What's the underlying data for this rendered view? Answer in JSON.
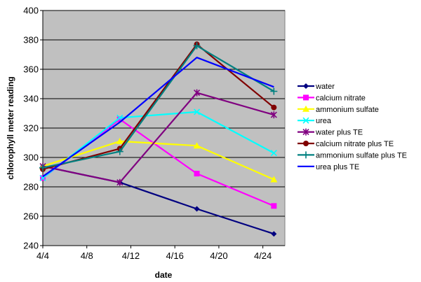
{
  "chart_data": {
    "type": "line",
    "title": "",
    "xlabel": "date",
    "ylabel": "chlorophyll meter reading",
    "x_ticks": [
      "4/4",
      "4/8",
      "4/12",
      "4/16",
      "4/20",
      "4/24"
    ],
    "x_tick_values": [
      0,
      4,
      8,
      12,
      16,
      20
    ],
    "x_range_days": [
      0,
      22
    ],
    "ylim": [
      240,
      400
    ],
    "y_ticks": [
      240,
      260,
      280,
      300,
      320,
      340,
      360,
      380,
      400
    ],
    "grid": "horizontal",
    "legend_position": "right",
    "plot_background": "#C0C0C0",
    "x": [
      "4/4",
      "4/11",
      "4/18",
      "4/25"
    ],
    "x_days": [
      0,
      7,
      14,
      21
    ],
    "series": [
      {
        "name": "water",
        "color": "#000080",
        "marker": "diamond",
        "values": [
          294,
          283,
          265,
          248
        ]
      },
      {
        "name": "calcium nitrate",
        "color": "#FF00FF",
        "marker": "square",
        "values": [
          286,
          326,
          289,
          267
        ]
      },
      {
        "name": "ammonium sulfate",
        "color": "#FFFF00",
        "marker": "triangle",
        "values": [
          294,
          311,
          308,
          285
        ]
      },
      {
        "name": "urea",
        "color": "#00FFFF",
        "marker": "x",
        "values": [
          286,
          327,
          331,
          303
        ]
      },
      {
        "name": "water plus TE",
        "color": "#800080",
        "marker": "star",
        "values": [
          294,
          283,
          344,
          329
        ]
      },
      {
        "name": "calcium nitrate plus TE",
        "color": "#800000",
        "marker": "circle",
        "values": [
          292,
          306,
          377,
          334
        ]
      },
      {
        "name": "ammonium sulfate plus TE",
        "color": "#008080",
        "marker": "plus",
        "values": [
          293,
          304,
          376,
          345
        ]
      },
      {
        "name": "urea  plus TE",
        "color": "#0000FF",
        "marker": "none",
        "values": [
          287,
          324,
          368,
          348
        ]
      }
    ]
  }
}
